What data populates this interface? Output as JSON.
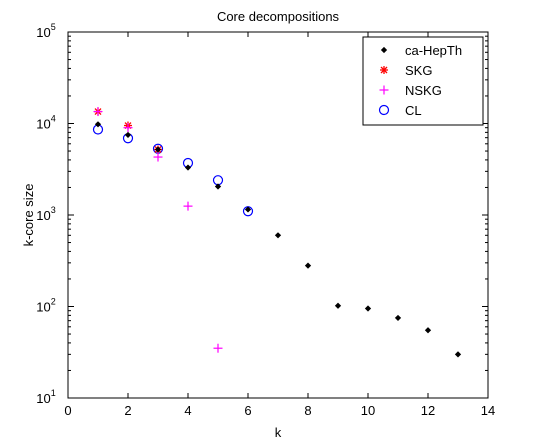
{
  "chart_data": {
    "type": "scatter",
    "title": "Core decompositions",
    "xlabel": "k",
    "ylabel": "k-core size",
    "xlim": [
      0,
      14
    ],
    "ylim": [
      10,
      100000
    ],
    "yscale": "log",
    "x_ticks": [
      0,
      2,
      4,
      6,
      8,
      10,
      12,
      14
    ],
    "y_ticks": [
      {
        "value": 10,
        "base": "10",
        "exp": "1"
      },
      {
        "value": 100,
        "base": "10",
        "exp": "2"
      },
      {
        "value": 1000,
        "base": "10",
        "exp": "3"
      },
      {
        "value": 10000,
        "base": "10",
        "exp": "4"
      },
      {
        "value": 100000,
        "base": "10",
        "exp": "5"
      }
    ],
    "grid": false,
    "legend_position": "top-right",
    "series": [
      {
        "name": "ca-HepTh",
        "marker": "dot",
        "color": "#000000",
        "x": [
          1,
          2,
          3,
          4,
          5,
          6,
          7,
          8,
          9,
          10,
          11,
          12,
          13
        ],
        "y": [
          9800,
          7500,
          5200,
          3300,
          2050,
          1150,
          600,
          280,
          102,
          95,
          75,
          55,
          30
        ]
      },
      {
        "name": "SKG",
        "marker": "asterisk",
        "color": "#ff0000",
        "x": [
          1,
          2,
          3
        ],
        "y": [
          13500,
          9500,
          5200
        ]
      },
      {
        "name": "NSKG",
        "marker": "plus",
        "color": "#ff00ff",
        "x": [
          1,
          2,
          3,
          4,
          5
        ],
        "y": [
          13500,
          9000,
          4300,
          1250,
          35
        ]
      },
      {
        "name": "CL",
        "marker": "circle",
        "color": "#0000ff",
        "x": [
          1,
          2,
          3,
          4,
          5,
          6
        ],
        "y": [
          8600,
          6900,
          5300,
          3700,
          2400,
          1100
        ]
      }
    ]
  }
}
